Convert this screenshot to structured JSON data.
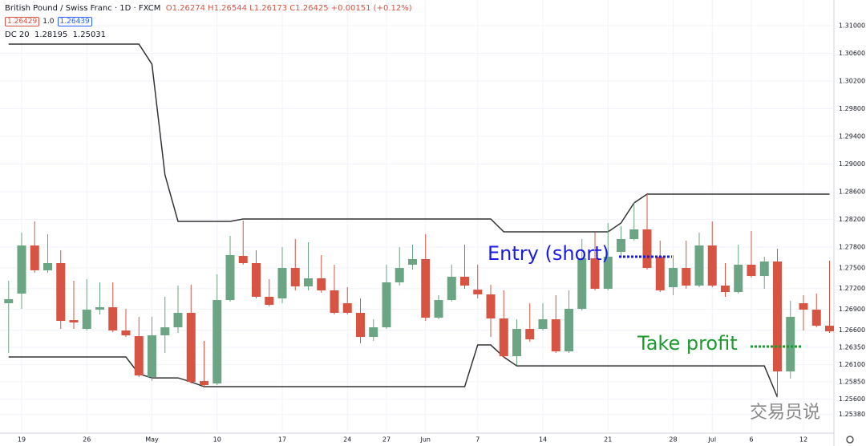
{
  "chart_data": {
    "type": "candlestick",
    "symbol": "British Pound / Swiss Franc · 1D · FXCM",
    "legend_text": "O1.26274 H1.26544 L1.26173 C1.26425 +0.00151 (+0.12%)",
    "price_boxes": [
      "1.26429",
      "1.0",
      "1.26439"
    ],
    "indicator": {
      "name": "DC 20",
      "last": [
        1.28195,
        1.25031
      ],
      "color": "#333333",
      "upper": [
        1.30733,
        1.30733,
        1.30733,
        1.30733,
        1.30733,
        1.30733,
        1.30733,
        1.30733,
        1.30733,
        1.30733,
        1.30733,
        1.30443,
        1.28843,
        1.28171,
        1.28171,
        1.28171,
        1.28171,
        1.28171,
        1.28206,
        1.28206,
        1.28206,
        1.28206,
        1.28206,
        1.28206,
        1.28206,
        1.28206,
        1.28206,
        1.28206,
        1.28206,
        1.28206,
        1.28206,
        1.28206,
        1.28206,
        1.28206,
        1.28206,
        1.28206,
        1.28206,
        1.28206,
        1.2802,
        1.2802,
        1.2802,
        1.2802,
        1.2802,
        1.2802,
        1.2802,
        1.2802,
        1.2802,
        1.28148,
        1.28438,
        1.28565,
        1.28565,
        1.28565,
        1.28565,
        1.28565,
        1.28565,
        1.28565,
        1.28565,
        1.28565,
        1.28565,
        1.28565,
        1.28565,
        1.28565,
        1.28565,
        1.28565
      ],
      "lower": [
        1.26211,
        1.26211,
        1.26211,
        1.26211,
        1.26211,
        1.26211,
        1.26211,
        1.26211,
        1.26211,
        1.26211,
        1.25967,
        1.25909,
        1.25909,
        1.25909,
        1.25851,
        1.25782,
        1.25782,
        1.25782,
        1.25782,
        1.25782,
        1.25782,
        1.25782,
        1.25782,
        1.25782,
        1.25782,
        1.25782,
        1.25782,
        1.25782,
        1.25782,
        1.25782,
        1.25782,
        1.25782,
        1.25782,
        1.25782,
        1.25782,
        1.25782,
        1.26385,
        1.26385,
        1.26211,
        1.26083,
        1.26083,
        1.26083,
        1.26083,
        1.26083,
        1.26083,
        1.26083,
        1.26083,
        1.26083,
        1.26083,
        1.26083,
        1.26083,
        1.26083,
        1.26083,
        1.26083,
        1.26083,
        1.26083,
        1.26083,
        1.26083,
        1.26083,
        1.25631,
        null,
        null,
        null,
        null
      ]
    },
    "categories": [
      null,
      "19",
      null,
      null,
      null,
      null,
      "26",
      null,
      null,
      null,
      null,
      "May",
      null,
      null,
      null,
      null,
      "10",
      null,
      null,
      null,
      null,
      "17",
      null,
      null,
      null,
      null,
      "24",
      null,
      null,
      "27",
      null,
      null,
      "Jun",
      null,
      null,
      null,
      "7",
      null,
      null,
      null,
      null,
      "14",
      null,
      null,
      null,
      null,
      "21",
      null,
      null,
      null,
      null,
      "28",
      null,
      null,
      "Jul",
      null,
      null,
      "6",
      null,
      null,
      null,
      "12",
      null,
      null
    ],
    "open": [
      1.26988,
      1.27127,
      1.27823,
      1.27464,
      1.27568,
      1.26744,
      1.26617,
      1.26895,
      1.2693,
      1.26594,
      1.26512,
      1.25921,
      1.26524,
      1.2664,
      1.26849,
      1.25863,
      1.25828,
      1.27034,
      1.27672,
      1.27568,
      1.27081,
      1.27058,
      1.27498,
      1.27232,
      1.27348,
      1.27174,
      1.26988,
      1.26849,
      1.26501,
      1.2664,
      1.2729,
      1.27545,
      1.27626,
      1.26779,
      1.27034,
      1.27371,
      1.27185,
      1.27116,
      1.26768,
      1.26222,
      1.26617,
      1.26617,
      1.26756,
      1.26292,
      1.26907,
      1.27638,
      1.27197,
      1.2773,
      1.27916,
      1.28055,
      1.27661,
      1.2722,
      1.27498,
      1.27243,
      1.27823,
      1.27243,
      1.2715,
      1.27545,
      1.27382,
      1.27591,
      1.26002,
      1.26988,
      1.26895,
      1.26663
    ],
    "high": [
      1.27313,
      1.28009,
      1.28171,
      1.27986,
      1.27754,
      1.27313,
      1.27336,
      1.2729,
      1.2729,
      1.26907,
      1.26791,
      1.26791,
      1.27081,
      1.27243,
      1.27255,
      1.26443,
      1.27406,
      1.27962,
      1.28183,
      1.27754,
      1.27336,
      1.278,
      1.27916,
      1.2787,
      1.27684,
      1.27545,
      1.2722,
      1.27058,
      1.26756,
      1.27545,
      1.278,
      1.27835,
      1.27986,
      1.27104,
      1.27545,
      1.27835,
      1.27545,
      1.27255,
      1.27174,
      1.26756,
      1.26988,
      1.26988,
      1.27104,
      1.27174,
      1.27916,
      1.28009,
      1.28148,
      1.28102,
      1.2845,
      1.28565,
      1.27893,
      1.27684,
      1.27893,
      1.28009,
      1.28171,
      1.27568,
      1.27835,
      1.28032,
      1.27661,
      1.27777,
      1.27023,
      1.27104,
      1.27127,
      1.27603
    ],
    "low": [
      1.26269,
      1.26907,
      1.27429,
      1.27429,
      1.26617,
      1.26617,
      1.26594,
      1.26826,
      1.2657,
      1.26501,
      1.25921,
      1.25863,
      1.26269,
      1.26559,
      1.25828,
      1.25782,
      1.25805,
      1.27011,
      1.27545,
      1.27058,
      1.26942,
      1.26988,
      1.27174,
      1.27174,
      1.27139,
      1.26826,
      1.26826,
      1.26408,
      1.26443,
      1.26617,
      1.27243,
      1.27475,
      1.26733,
      1.26756,
      1.27011,
      1.27197,
      1.27058,
      1.26501,
      1.26199,
      1.26095,
      1.26431,
      1.26594,
      1.26269,
      1.26269,
      1.26884,
      1.27174,
      1.27174,
      1.27661,
      1.27893,
      1.27475,
      1.2715,
      1.27104,
      1.27197,
      1.2722,
      1.2722,
      1.27081,
      1.27127,
      1.27359,
      1.27197,
      1.25631,
      1.25898,
      1.26594,
      1.2664,
      1.26559
    ],
    "close": [
      1.27046,
      1.27823,
      1.27464,
      1.27568,
      1.26733,
      1.2671,
      1.26895,
      1.2693,
      1.26594,
      1.26524,
      1.25944,
      1.26524,
      1.2664,
      1.26849,
      1.25851,
      1.25805,
      1.27034,
      1.27684,
      1.27568,
      1.27081,
      1.26965,
      1.27498,
      1.27232,
      1.27348,
      1.27174,
      1.26849,
      1.26849,
      1.26501,
      1.2664,
      1.2729,
      1.27498,
      1.27626,
      1.26779,
      1.27034,
      1.27371,
      1.27243,
      1.27116,
      1.26768,
      1.26222,
      1.26617,
      1.26466,
      1.26756,
      1.26292,
      1.26907,
      1.27638,
      1.27197,
      1.27661,
      1.27916,
      1.28055,
      1.27498,
      1.27174,
      1.27498,
      1.27243,
      1.27823,
      1.27243,
      1.2715,
      1.27545,
      1.27382,
      1.27591,
      1.26002,
      1.26791,
      1.26895,
      1.26663,
      1.26582
    ],
    "up_color": "#6ba583",
    "down_color": "#d75442",
    "ylim": [
      1.2511,
      1.31371
    ],
    "yticks": [
      {
        "value": 1.31,
        "label": "1.31000"
      },
      {
        "value": 1.306,
        "label": "1.30600"
      },
      {
        "value": 1.302,
        "label": "1.30200"
      },
      {
        "value": 1.298,
        "label": "1.29800"
      },
      {
        "value": 1.294,
        "label": "1.29400"
      },
      {
        "value": 1.29,
        "label": "1.29000"
      },
      {
        "value": 1.286,
        "label": "1.28600"
      },
      {
        "value": 1.282,
        "label": "1.28200"
      },
      {
        "value": 1.278,
        "label": "1.27800"
      },
      {
        "value": 1.275,
        "label": "1.27500"
      },
      {
        "value": 1.272,
        "label": "1.27200"
      },
      {
        "value": 1.269,
        "label": "1.26900"
      },
      {
        "value": 1.266,
        "label": "1.26600"
      },
      {
        "value": 1.2635,
        "label": "1.26350"
      },
      {
        "value": 1.261,
        "label": "1.26100"
      },
      {
        "value": 1.2585,
        "label": "1.25850"
      },
      {
        "value": 1.256,
        "label": "1.25600"
      },
      {
        "value": 1.2538,
        "label": "1.25380"
      }
    ],
    "grid": true,
    "annotations": [
      {
        "text": "Entry (short)",
        "color": "#1a1ae6"
      },
      {
        "text": "Take profit",
        "color": "#1e9a2e"
      }
    ],
    "watermark": "交易员说"
  }
}
